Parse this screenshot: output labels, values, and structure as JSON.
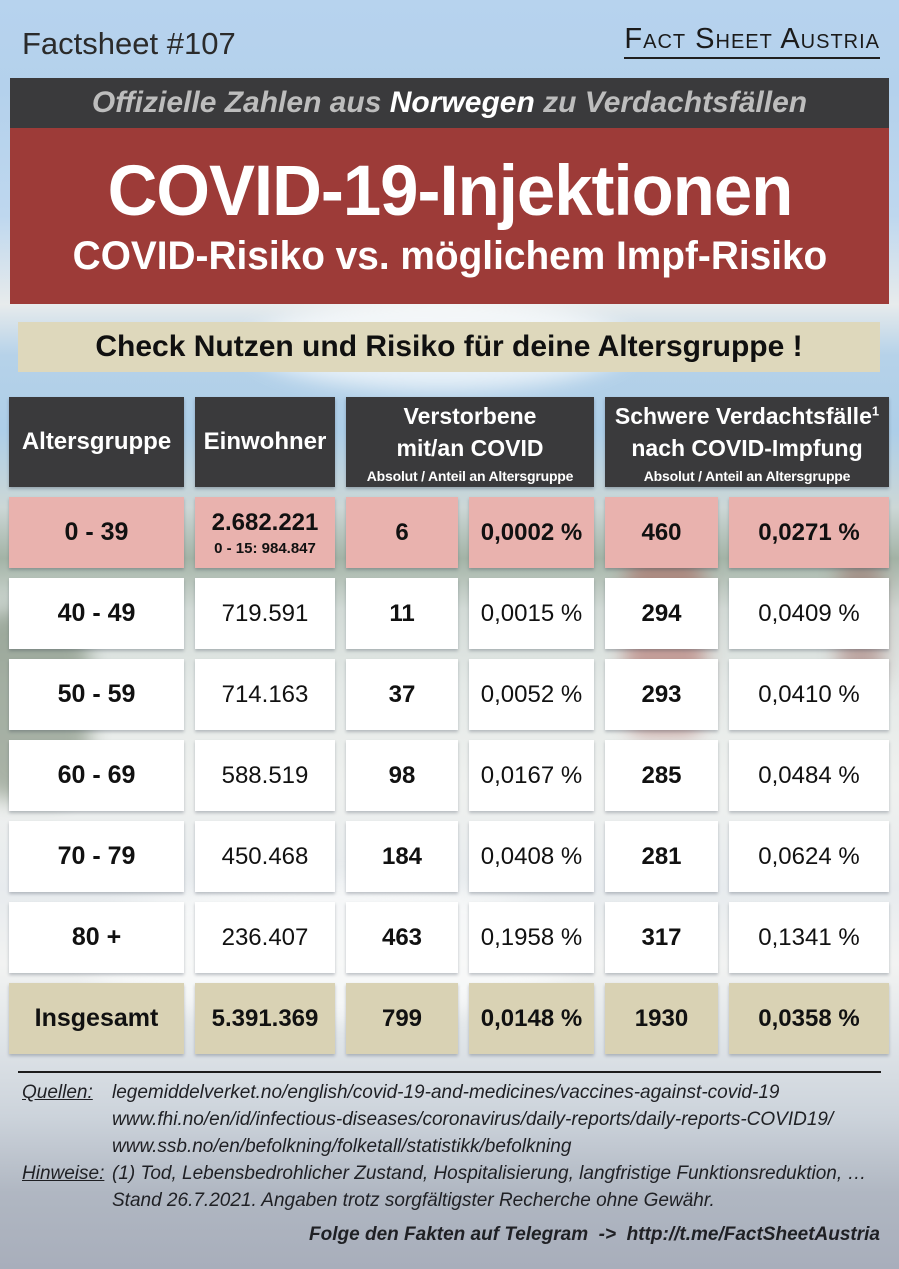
{
  "header": {
    "factsheet_number": "Factsheet #107",
    "brand": "Fact Sheet Austria"
  },
  "banners": {
    "official": {
      "prefix": "Offizielle Zahlen aus ",
      "highlight": "Norwegen",
      "suffix": " zu Verdachtsfällen"
    },
    "title": "COVID-19-Injektionen",
    "subtitle": "COVID-Risiko vs. möglichem Impf-Risiko",
    "check": "Check Nutzen und Risiko für deine Altersgruppe !"
  },
  "table": {
    "headers": {
      "age": "Altersgruppe",
      "population": "Einwohner",
      "covid_line1": "Verstorbene",
      "covid_line2": "mit/an COVID",
      "covid_sub": "Absolut / Anteil an Altersgruppe",
      "vax_line1": "Schwere Verdachtsfälle",
      "vax_sup": "1",
      "vax_line2": "nach COVID-Impfung",
      "vax_sub": "Absolut / Anteil an Altersgruppe"
    },
    "rows": [
      {
        "age": "0 - 39",
        "population": "2.682.221",
        "population_note": "0 - 15: 984.847",
        "covid_abs": "6",
        "covid_pct": "0,0002 %",
        "vax_abs": "460",
        "vax_pct": "0,0271 %"
      },
      {
        "age": "40 - 49",
        "population": "719.591",
        "covid_abs": "11",
        "covid_pct": "0,0015 %",
        "vax_abs": "294",
        "vax_pct": "0,0409 %"
      },
      {
        "age": "50 - 59",
        "population": "714.163",
        "covid_abs": "37",
        "covid_pct": "0,0052 %",
        "vax_abs": "293",
        "vax_pct": "0,0410 %"
      },
      {
        "age": "60 - 69",
        "population": "588.519",
        "covid_abs": "98",
        "covid_pct": "0,0167 %",
        "vax_abs": "285",
        "vax_pct": "0,0484 %"
      },
      {
        "age": "70 - 79",
        "population": "450.468",
        "covid_abs": "184",
        "covid_pct": "0,0408 %",
        "vax_abs": "281",
        "vax_pct": "0,0624 %"
      },
      {
        "age": "80 +",
        "population": "236.407",
        "covid_abs": "463",
        "covid_pct": "0,1958 %",
        "vax_abs": "317",
        "vax_pct": "0,1341 %"
      },
      {
        "age": "Insgesamt",
        "population": "5.391.369",
        "covid_abs": "799",
        "covid_pct": "0,0148 %",
        "vax_abs": "1930",
        "vax_pct": "0,0358 %"
      }
    ]
  },
  "footer": {
    "sources_label": "Quellen:",
    "sources": [
      "legemiddelverket.no/english/covid-19-and-medicines/vaccines-against-covid-19",
      "www.fhi.no/en/id/infectious-diseases/coronavirus/daily-reports/daily-reports-COVID19/",
      "www.ssb.no/en/befolkning/folketall/statistikk/befolkning"
    ],
    "notes_label": "Hinweise:",
    "notes": [
      "(1) Tod, Lebensbedrohlicher Zustand, Hospitalisierung, langfristige Funktionsreduktion, …",
      "Stand 26.7.2021. Angaben trotz sorgfältigster Recherche ohne Gewähr."
    ],
    "telegram": "Folge den Fakten auf Telegram  ->  http://t.me/FactSheetAustria"
  },
  "colors": {
    "banner_dark": "#3a3a3c",
    "banner_red": "#9d3b38",
    "banner_check_bg": "#ded8bc",
    "row_highlight_pink": "#e9b2ae",
    "row_total_beige": "#d9d2b4",
    "header_text": "#ffffff",
    "muted_banner_text": "#bdbdbd"
  }
}
